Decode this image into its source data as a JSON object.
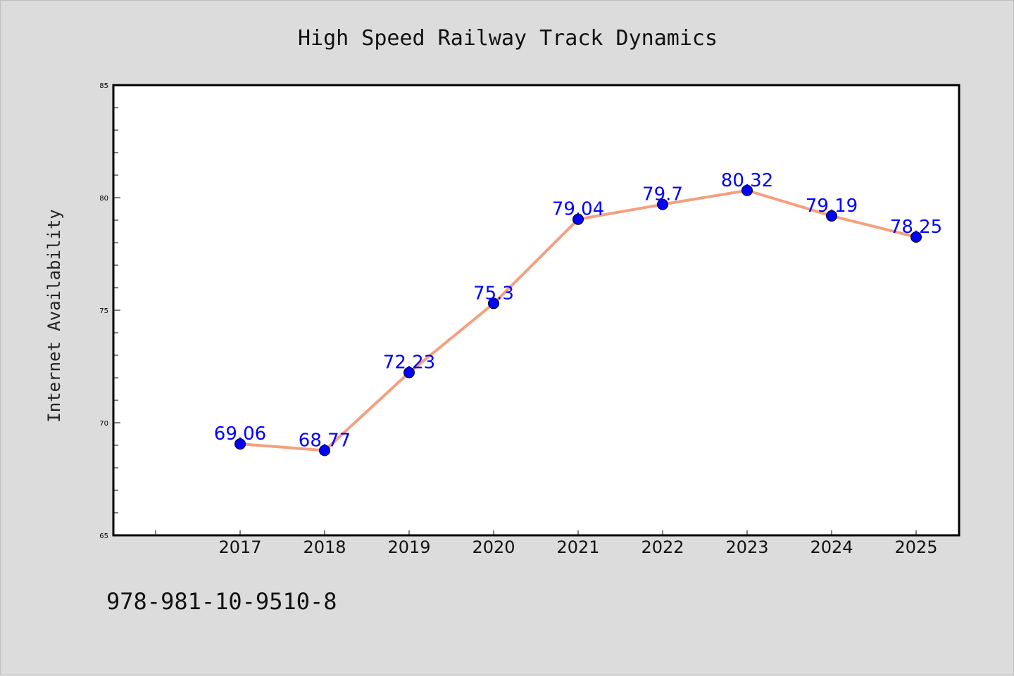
{
  "chart_data": {
    "type": "line",
    "title": "High Speed Railway Track Dynamics",
    "xlabel": "",
    "ylabel": "Internet Availability",
    "categories": [
      "2017",
      "2018",
      "2019",
      "2020",
      "2021",
      "2022",
      "2023",
      "2024",
      "2025"
    ],
    "series": [
      {
        "values": [
          69.06,
          68.77,
          72.23,
          75.3,
          79.04,
          79.7,
          80.32,
          79.19,
          78.25
        ],
        "labels": [
          "69.06",
          "68.77",
          "72.23",
          "75.3",
          "79.04",
          "79.7",
          "80.32",
          "79.19",
          "78.25"
        ],
        "line_color": "#f4a07f",
        "marker_color": "#0000ff"
      }
    ],
    "ylim": [
      65,
      85
    ],
    "yticks": [
      65,
      70,
      75,
      80,
      85
    ],
    "ytick_labels": [
      "65",
      "70",
      "75",
      "80",
      "85"
    ],
    "grid": false,
    "legend": "none",
    "label_color": "#0000ff"
  },
  "footer": {
    "text": "978-981-10-9510-8"
  },
  "colors": {
    "background": "#dcdcdc",
    "plot_area": "#ffffff"
  }
}
